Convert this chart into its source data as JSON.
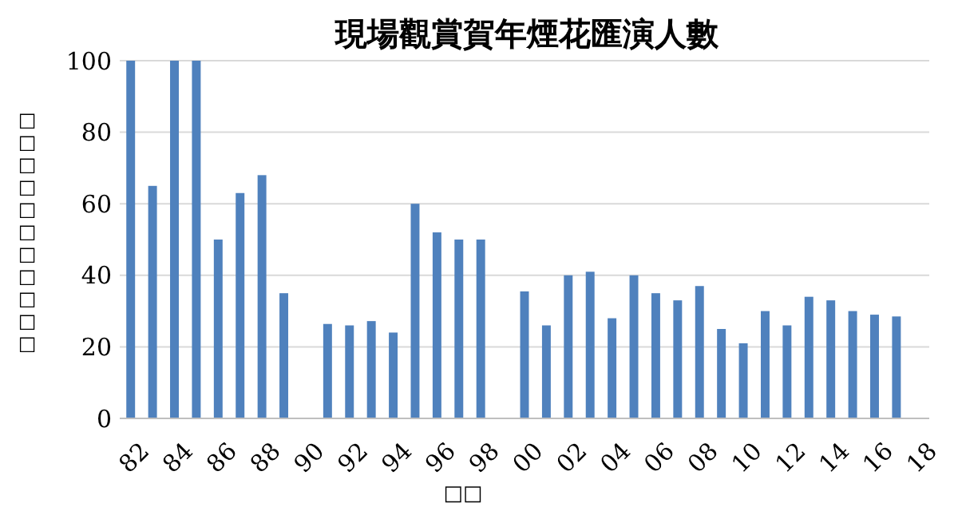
{
  "chart_data": {
    "type": "bar",
    "title": "現場觀賞賀年煙花匯演人數",
    "xlabel": "□□",
    "ylabel": "□□□□□□□□□□□",
    "categories": [
      "82",
      null,
      "84",
      null,
      "86",
      null,
      "88",
      null,
      "90",
      null,
      "92",
      null,
      "94",
      null,
      "96",
      null,
      "98",
      null,
      "00",
      null,
      "02",
      null,
      "04",
      null,
      "06",
      null,
      "08",
      null,
      "10",
      null,
      "12",
      null,
      "14",
      null,
      "16",
      null,
      "18"
    ],
    "values": [
      100,
      65,
      100,
      100,
      50,
      63,
      68,
      35,
      null,
      26.4,
      26,
      27.2,
      24,
      60,
      52,
      50,
      50,
      null,
      35.5,
      26,
      40,
      41,
      28,
      40,
      35,
      33,
      37,
      25,
      21,
      30,
      26,
      34,
      33,
      30,
      29,
      28.5,
      null
    ],
    "color": "#4f81bd",
    "ylim": [
      0,
      100
    ],
    "yticks": [
      0,
      20,
      40,
      60,
      80,
      100
    ],
    "grid": "y"
  }
}
